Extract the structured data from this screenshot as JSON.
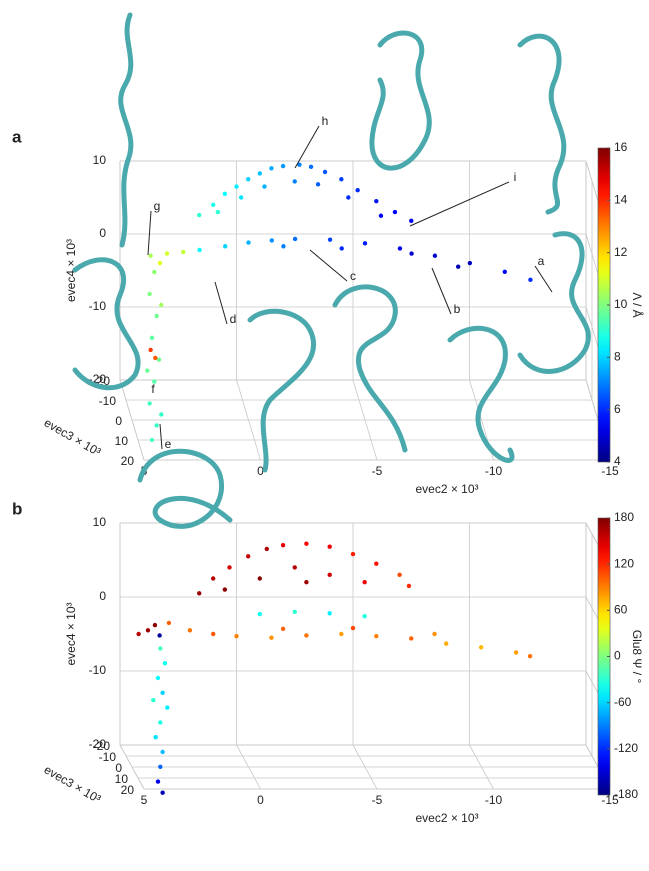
{
  "chart_data": [
    {
      "type": "scatter3d",
      "panel_label": "a",
      "x_label": "evec2 × 10³",
      "y_label": "evec3 × 10³",
      "z_label": "evec4 × 10³",
      "xlim": [
        5,
        -15
      ],
      "xticks": [
        5,
        0,
        -5,
        -10,
        -15
      ],
      "ylim": [
        -20,
        20
      ],
      "yticks": [
        -20,
        -10,
        0,
        10,
        20
      ],
      "zlim": [
        -20,
        10
      ],
      "zticks": [
        10,
        0,
        -10,
        -20
      ],
      "grid": true,
      "colormap": "jet",
      "colorbar": {
        "label": "Λ / Å",
        "lim": [
          4,
          16
        ],
        "ticks": [
          4,
          6,
          8,
          10,
          12,
          14,
          16
        ]
      },
      "annotations": [
        "h",
        "i",
        "g",
        "a",
        "b",
        "c",
        "d",
        "e",
        "f"
      ],
      "x": [
        1.6,
        1.0,
        0.5,
        0,
        -0.5,
        -1,
        -1.5,
        -2,
        -2.7,
        -3.2,
        -3.8,
        -4.5,
        -5.2,
        -6,
        -6.8,
        -7.5,
        0.8,
        -0.2,
        -1.2,
        -2.5,
        -3.5,
        -4.8,
        -6.2,
        2.1,
        1,
        0,
        -1,
        -2,
        -3.5,
        -5,
        -6.5,
        -8,
        -9.5,
        -11,
        -12.1,
        -4,
        -7,
        -1.5,
        -9,
        4.2,
        3.5,
        2.8,
        3.8,
        4.3,
        4.5,
        4.2,
        4.4,
        4.1,
        4.3,
        4.5,
        4.2,
        4.4,
        4.0,
        4.6,
        4.0,
        4.2,
        4.0
      ],
      "y": [
        -20,
        -20,
        -20,
        -20,
        -20,
        -20,
        -20,
        -20,
        -20,
        -20,
        -20,
        -20,
        -20,
        -20,
        -20,
        -20,
        -20,
        -20,
        -20,
        -20,
        -20,
        -20,
        -20,
        0,
        0,
        0,
        0,
        0,
        0,
        0,
        0,
        0,
        0,
        0,
        0,
        0,
        0,
        0,
        0,
        0,
        0,
        0,
        0,
        10,
        10,
        10,
        10,
        10,
        10,
        10,
        10,
        10,
        10,
        10,
        10,
        0,
        0
      ],
      "z": [
        2.6,
        4,
        5.5,
        6.5,
        7.5,
        8.3,
        9,
        9.3,
        9.5,
        9.2,
        8.5,
        7.5,
        6,
        4.5,
        3,
        1.8,
        3,
        5,
        6.5,
        7.2,
        6.8,
        5,
        2.5,
        3.3,
        3.8,
        4.3,
        4.6,
        4.8,
        4.7,
        4.2,
        3.5,
        2.5,
        1.5,
        0.3,
        -0.8,
        3.5,
        2.8,
        3.8,
        1,
        2.5,
        2.8,
        3,
        1.5,
        3,
        0,
        -3,
        -6,
        -9,
        -12,
        -15,
        -18,
        -20,
        -1.5,
        -10.5,
        -16.5,
        -10.4,
        -11.5
      ],
      "c": [
        9,
        8.8,
        8.5,
        8.3,
        8,
        7.8,
        7.5,
        7.3,
        7,
        6.8,
        6.5,
        6.2,
        6,
        5.7,
        5.5,
        5.3,
        9,
        8.2,
        7.6,
        7,
        6.6,
        6,
        5.5,
        8.5,
        8,
        7.6,
        7.2,
        6.8,
        6.3,
        5.8,
        5.3,
        4.9,
        4.7,
        5.5,
        6,
        6,
        5,
        7,
        4.6,
        10.5,
        11,
        10.8,
        11.2,
        10.2,
        10,
        9.8,
        9.6,
        9.8,
        9.5,
        9.3,
        9.2,
        9.4,
        10.4,
        9.7,
        9.1,
        13.8,
        13.5
      ]
    },
    {
      "type": "scatter3d",
      "panel_label": "b",
      "x_label": "evec2 × 10³",
      "y_label": "evec3 × 10³",
      "z_label": "evec4 × 10³",
      "xlim": [
        5,
        -15
      ],
      "xticks": [
        5,
        0,
        -5,
        -10,
        -15
      ],
      "ylim": [
        -20,
        20
      ],
      "yticks": [
        -20,
        -10,
        0,
        10,
        20
      ],
      "zlim": [
        -20,
        10
      ],
      "zticks": [
        10,
        0,
        -10,
        -20
      ],
      "grid": true,
      "colormap": "jet",
      "colorbar": {
        "label": "Glu8 Ψ / °",
        "lim": [
          -180,
          180
        ],
        "ticks": [
          -180,
          -120,
          -60,
          0,
          60,
          120,
          180
        ]
      },
      "x": [
        1.6,
        1,
        0.3,
        -0.5,
        -1.3,
        -2,
        -3,
        -4,
        -5,
        -6,
        -7,
        -7.4,
        0.5,
        -1,
        -2.5,
        -4,
        -5.5,
        -3,
        2.9,
        2,
        1,
        0,
        -1.5,
        -3,
        -4.5,
        -6,
        -7.5,
        -9,
        -10.5,
        -12,
        -12.6,
        -2,
        -5,
        -8.5,
        -1,
        -2.5,
        -4,
        -5.5,
        3.8,
        3.3,
        4.2,
        3.5,
        4.3,
        4.1,
        4.4,
        4.2,
        4.0,
        4.3,
        4.5,
        4.2,
        4.3,
        4.4,
        4.2,
        4.6
      ],
      "y": [
        -20,
        -20,
        -20,
        -20,
        -20,
        -20,
        -20,
        -20,
        -20,
        -20,
        -20,
        -20,
        -20,
        -20,
        -20,
        -20,
        -20,
        -20,
        -20,
        -20,
        -20,
        -20,
        -20,
        -20,
        -20,
        -20,
        -20,
        -20,
        -20,
        -20,
        -20,
        -20,
        -20,
        -20,
        -20,
        -20,
        -20,
        -20,
        -20,
        -20,
        -20,
        -20,
        20,
        20,
        20,
        20,
        20,
        20,
        20,
        20,
        20,
        20,
        20,
        20
      ],
      "z": [
        0.5,
        2.5,
        4,
        5.5,
        6.5,
        7,
        7.2,
        6.8,
        5.8,
        4.5,
        3,
        1.5,
        1,
        2.5,
        4,
        3,
        2,
        2,
        -3.5,
        -4.5,
        -5,
        -5.3,
        -5.5,
        -5.2,
        -5,
        -5.3,
        -5.6,
        -6.3,
        -6.8,
        -7.5,
        -8,
        -4.3,
        -4.2,
        -5,
        -2.3,
        -2,
        -2.2,
        -2.6,
        -4.5,
        -5.2,
        -5,
        -3.8,
        -1,
        -3,
        -5,
        -7,
        -9,
        -11,
        -13,
        -15,
        -17,
        -19,
        -20.5,
        -8
      ],
      "c": [
        170,
        160,
        150,
        155,
        165,
        145,
        135,
        140,
        125,
        130,
        110,
        120,
        175,
        178,
        160,
        150,
        140,
        170,
        100,
        95,
        105,
        90,
        85,
        95,
        80,
        90,
        100,
        75,
        70,
        80,
        95,
        100,
        110,
        85,
        -40,
        -30,
        -50,
        -35,
        170,
        -170,
        160,
        175,
        -20,
        -40,
        -45,
        -60,
        -50,
        -35,
        -55,
        -70,
        -100,
        -140,
        -160,
        -30
      ]
    }
  ]
}
